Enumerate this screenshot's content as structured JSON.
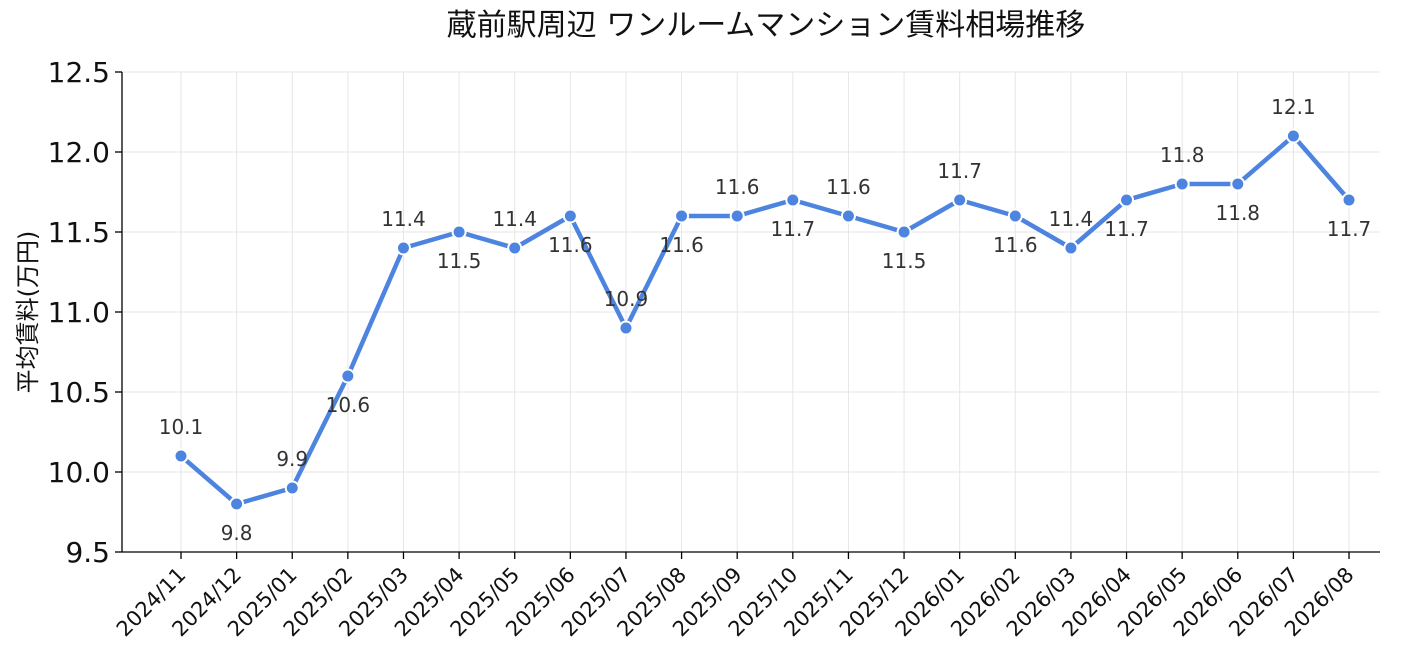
{
  "chart_data": {
    "type": "line",
    "title": "蔵前駅周辺 ワンルームマンション賃料相場推移",
    "xlabel": "",
    "ylabel": "平均賃料(万円)",
    "ylim": [
      9.5,
      12.5
    ],
    "yticks": [
      "9.5",
      "10.0",
      "10.5",
      "11.0",
      "11.5",
      "12.0",
      "12.5"
    ],
    "grid": true,
    "color": "#4c84e0",
    "categories": [
      "2024/11",
      "2024/12",
      "2025/01",
      "2025/02",
      "2025/03",
      "2025/04",
      "2025/05",
      "2025/06",
      "2025/07",
      "2025/08",
      "2025/09",
      "2025/10",
      "2025/11",
      "2025/12",
      "2026/01",
      "2026/02",
      "2026/03",
      "2026/04",
      "2026/05",
      "2026/06",
      "2026/07",
      "2026/08"
    ],
    "values": [
      10.1,
      9.8,
      9.9,
      10.6,
      11.4,
      11.5,
      11.4,
      11.6,
      10.9,
      11.6,
      11.6,
      11.7,
      11.6,
      11.5,
      11.7,
      11.6,
      11.4,
      11.7,
      11.8,
      11.8,
      12.1,
      11.7
    ],
    "label_positions": [
      "above",
      "below",
      "above",
      "below",
      "above",
      "below",
      "above",
      "below",
      "above",
      "below",
      "above",
      "below",
      "above",
      "below",
      "above",
      "below",
      "above",
      "below",
      "above",
      "below",
      "above",
      "below"
    ]
  }
}
